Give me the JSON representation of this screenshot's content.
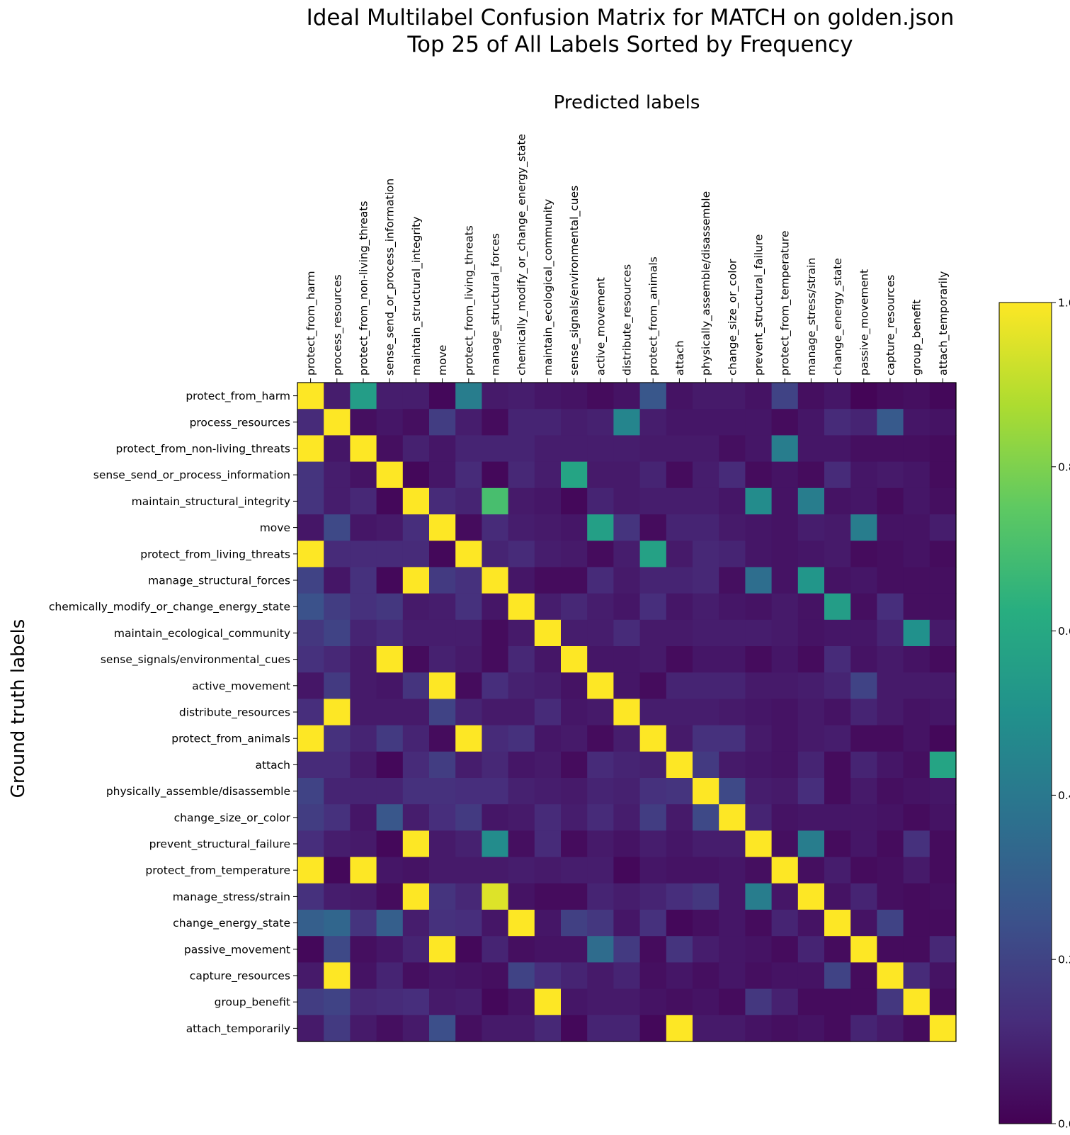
{
  "chart_data": {
    "type": "heatmap",
    "title": "Ideal Multilabel Confusion Matrix for MATCH on golden.json\nTop 25 of All Labels Sorted by Frequency",
    "xlabel": "Predicted labels",
    "ylabel": "Ground truth labels",
    "labels": [
      "protect_from_harm",
      "process_resources",
      "protect_from_non-living_threats",
      "sense_send_or_process_information",
      "maintain_structural_integrity",
      "move",
      "protect_from_living_threats",
      "manage_structural_forces",
      "chemically_modify_or_change_energy_state",
      "maintain_ecological_community",
      "sense_signals/environmental_cues",
      "active_movement",
      "distribute_resources",
      "protect_from_animals",
      "attach",
      "physically_assemble/disassemble",
      "change_size_or_color",
      "prevent_structural_failure",
      "protect_from_temperature",
      "manage_stress/strain",
      "change_energy_state",
      "passive_movement",
      "capture_resources",
      "group_benefit",
      "attach_temporarily"
    ],
    "colorbar": {
      "min": 0.0,
      "max": 1.0,
      "ticks": [
        "0.0",
        "0.2",
        "0.4",
        "0.6",
        "0.8",
        "1.0"
      ],
      "colormap": "viridis"
    },
    "values": [
      [
        1.0,
        0.08,
        0.55,
        0.08,
        0.08,
        0.02,
        0.42,
        0.07,
        0.08,
        0.06,
        0.05,
        0.03,
        0.05,
        0.27,
        0.05,
        0.07,
        0.07,
        0.05,
        0.2,
        0.04,
        0.06,
        0.01,
        0.03,
        0.04,
        0.02
      ],
      [
        0.12,
        1.0,
        0.04,
        0.06,
        0.04,
        0.18,
        0.08,
        0.03,
        0.1,
        0.1,
        0.08,
        0.09,
        0.45,
        0.08,
        0.06,
        0.06,
        0.06,
        0.06,
        0.03,
        0.06,
        0.12,
        0.1,
        0.28,
        0.06,
        0.05
      ],
      [
        1.0,
        0.06,
        1.0,
        0.04,
        0.09,
        0.06,
        0.1,
        0.1,
        0.1,
        0.08,
        0.08,
        0.08,
        0.08,
        0.07,
        0.07,
        0.07,
        0.04,
        0.06,
        0.42,
        0.06,
        0.06,
        0.04,
        0.04,
        0.04,
        0.03
      ],
      [
        0.15,
        0.08,
        0.05,
        1.0,
        0.02,
        0.06,
        0.12,
        0.02,
        0.11,
        0.08,
        0.58,
        0.07,
        0.07,
        0.1,
        0.03,
        0.08,
        0.12,
        0.03,
        0.05,
        0.03,
        0.12,
        0.06,
        0.07,
        0.06,
        0.03
      ],
      [
        0.15,
        0.08,
        0.11,
        0.02,
        1.0,
        0.12,
        0.1,
        0.7,
        0.07,
        0.06,
        0.02,
        0.1,
        0.07,
        0.08,
        0.08,
        0.08,
        0.06,
        0.48,
        0.05,
        0.42,
        0.05,
        0.06,
        0.03,
        0.06,
        0.04
      ],
      [
        0.06,
        0.22,
        0.06,
        0.07,
        0.13,
        1.0,
        0.03,
        0.12,
        0.08,
        0.07,
        0.06,
        0.56,
        0.15,
        0.03,
        0.1,
        0.1,
        0.07,
        0.06,
        0.05,
        0.08,
        0.07,
        0.42,
        0.05,
        0.05,
        0.08
      ],
      [
        1.0,
        0.12,
        0.12,
        0.12,
        0.12,
        0.02,
        1.0,
        0.1,
        0.12,
        0.08,
        0.07,
        0.03,
        0.08,
        0.57,
        0.07,
        0.11,
        0.1,
        0.06,
        0.05,
        0.06,
        0.07,
        0.03,
        0.04,
        0.05,
        0.03
      ],
      [
        0.2,
        0.06,
        0.14,
        0.02,
        1.0,
        0.17,
        0.14,
        1.0,
        0.06,
        0.03,
        0.03,
        0.12,
        0.07,
        0.1,
        0.1,
        0.11,
        0.04,
        0.36,
        0.05,
        0.52,
        0.05,
        0.06,
        0.04,
        0.04,
        0.04
      ],
      [
        0.25,
        0.18,
        0.14,
        0.16,
        0.07,
        0.08,
        0.14,
        0.06,
        1.0,
        0.08,
        0.11,
        0.08,
        0.06,
        0.13,
        0.06,
        0.08,
        0.06,
        0.05,
        0.07,
        0.05,
        0.55,
        0.04,
        0.13,
        0.04,
        0.04
      ],
      [
        0.16,
        0.2,
        0.1,
        0.12,
        0.08,
        0.08,
        0.08,
        0.03,
        0.07,
        1.0,
        0.08,
        0.08,
        0.12,
        0.07,
        0.07,
        0.08,
        0.08,
        0.08,
        0.07,
        0.05,
        0.06,
        0.06,
        0.1,
        0.5,
        0.07
      ],
      [
        0.14,
        0.11,
        0.07,
        1.0,
        0.03,
        0.09,
        0.07,
        0.03,
        0.11,
        0.06,
        1.0,
        0.06,
        0.06,
        0.07,
        0.03,
        0.06,
        0.06,
        0.03,
        0.06,
        0.03,
        0.12,
        0.05,
        0.07,
        0.05,
        0.03
      ],
      [
        0.06,
        0.17,
        0.07,
        0.06,
        0.15,
        1.0,
        0.03,
        0.13,
        0.09,
        0.08,
        0.05,
        1.0,
        0.06,
        0.03,
        0.1,
        0.1,
        0.1,
        0.07,
        0.07,
        0.08,
        0.1,
        0.2,
        0.07,
        0.07,
        0.07
      ],
      [
        0.13,
        1.0,
        0.07,
        0.07,
        0.07,
        0.2,
        0.1,
        0.07,
        0.07,
        0.12,
        0.06,
        0.07,
        1.0,
        0.08,
        0.08,
        0.08,
        0.07,
        0.06,
        0.05,
        0.07,
        0.05,
        0.1,
        0.07,
        0.05,
        0.06
      ],
      [
        1.0,
        0.14,
        0.1,
        0.17,
        0.1,
        0.03,
        1.0,
        0.12,
        0.14,
        0.06,
        0.07,
        0.03,
        0.08,
        1.0,
        0.07,
        0.14,
        0.14,
        0.07,
        0.05,
        0.07,
        0.08,
        0.03,
        0.03,
        0.05,
        0.02
      ],
      [
        0.12,
        0.12,
        0.07,
        0.02,
        0.12,
        0.18,
        0.08,
        0.11,
        0.06,
        0.07,
        0.03,
        0.12,
        0.1,
        0.09,
        1.0,
        0.17,
        0.07,
        0.06,
        0.05,
        0.1,
        0.03,
        0.1,
        0.06,
        0.04,
        0.58
      ],
      [
        0.2,
        0.1,
        0.1,
        0.1,
        0.14,
        0.14,
        0.13,
        0.13,
        0.09,
        0.08,
        0.07,
        0.1,
        0.09,
        0.14,
        0.15,
        1.0,
        0.22,
        0.08,
        0.07,
        0.13,
        0.03,
        0.07,
        0.04,
        0.05,
        0.06
      ],
      [
        0.18,
        0.14,
        0.06,
        0.27,
        0.08,
        0.13,
        0.17,
        0.06,
        0.07,
        0.12,
        0.08,
        0.12,
        0.08,
        0.18,
        0.07,
        0.22,
        1.0,
        0.1,
        0.05,
        0.06,
        0.06,
        0.06,
        0.05,
        0.03,
        0.05
      ],
      [
        0.13,
        0.08,
        0.07,
        0.02,
        1.0,
        0.07,
        0.09,
        0.48,
        0.04,
        0.12,
        0.03,
        0.07,
        0.05,
        0.08,
        0.06,
        0.08,
        0.08,
        1.0,
        0.04,
        0.42,
        0.03,
        0.06,
        0.03,
        0.14,
        0.03
      ],
      [
        1.0,
        0.02,
        1.0,
        0.06,
        0.05,
        0.07,
        0.07,
        0.07,
        0.08,
        0.07,
        0.08,
        0.08,
        0.02,
        0.06,
        0.05,
        0.05,
        0.06,
        0.04,
        1.0,
        0.04,
        0.08,
        0.03,
        0.04,
        0.07,
        0.03
      ],
      [
        0.14,
        0.08,
        0.07,
        0.03,
        1.0,
        0.15,
        0.11,
        0.95,
        0.05,
        0.03,
        0.03,
        0.1,
        0.08,
        0.1,
        0.13,
        0.16,
        0.06,
        0.42,
        0.06,
        1.0,
        0.05,
        0.1,
        0.04,
        0.03,
        0.04
      ],
      [
        0.3,
        0.33,
        0.15,
        0.3,
        0.08,
        0.14,
        0.13,
        0.06,
        1.0,
        0.06,
        0.19,
        0.16,
        0.06,
        0.14,
        0.02,
        0.04,
        0.06,
        0.03,
        0.1,
        0.05,
        1.0,
        0.05,
        0.2,
        0.03,
        0.03
      ],
      [
        0.02,
        0.22,
        0.04,
        0.06,
        0.1,
        1.0,
        0.02,
        0.1,
        0.04,
        0.05,
        0.05,
        0.35,
        0.17,
        0.03,
        0.15,
        0.08,
        0.06,
        0.05,
        0.03,
        0.1,
        0.03,
        1.0,
        0.03,
        0.03,
        0.11
      ],
      [
        0.07,
        1.0,
        0.05,
        0.1,
        0.04,
        0.06,
        0.05,
        0.04,
        0.2,
        0.13,
        0.1,
        0.07,
        0.1,
        0.04,
        0.06,
        0.04,
        0.06,
        0.04,
        0.05,
        0.05,
        0.2,
        0.03,
        1.0,
        0.12,
        0.05
      ],
      [
        0.18,
        0.2,
        0.11,
        0.12,
        0.13,
        0.07,
        0.08,
        0.02,
        0.05,
        1.0,
        0.06,
        0.07,
        0.07,
        0.05,
        0.04,
        0.05,
        0.03,
        0.16,
        0.09,
        0.03,
        0.03,
        0.03,
        0.16,
        1.0,
        0.03
      ],
      [
        0.07,
        0.17,
        0.07,
        0.04,
        0.07,
        0.24,
        0.04,
        0.07,
        0.07,
        0.11,
        0.02,
        0.1,
        0.1,
        0.02,
        1.0,
        0.07,
        0.07,
        0.05,
        0.04,
        0.05,
        0.03,
        0.1,
        0.07,
        0.03,
        1.0
      ]
    ]
  }
}
